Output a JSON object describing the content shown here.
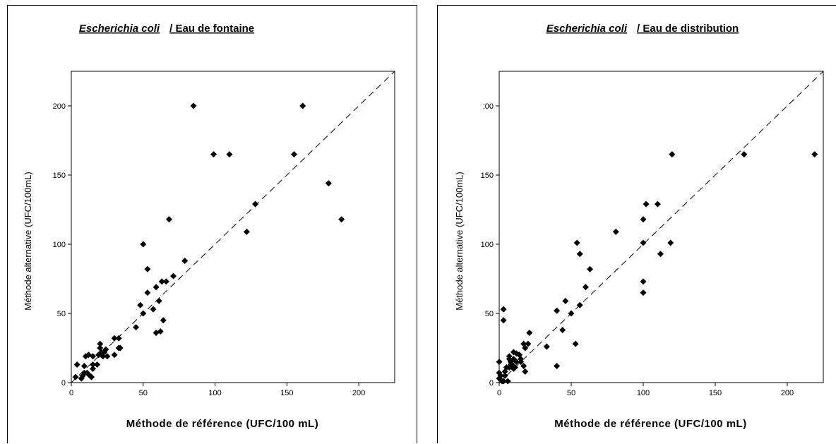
{
  "chart_data": [
    {
      "type": "scatter",
      "title_species": "Escherichia coli",
      "title_rest": "/ Eau de fontaine",
      "xlabel": "Méthode de référence (UFC/100 mL)",
      "ylabel": "Méthode alternative (UFC/100mL)",
      "xlim": [
        0,
        225
      ],
      "ylim": [
        0,
        225
      ],
      "xticks": [
        "0",
        "50",
        "100",
        "150",
        "200"
      ],
      "yticks": [
        "0",
        "50",
        "100",
        "150",
        "200"
      ],
      "reference_line": "y = x (dashed)",
      "grid": false,
      "points": [
        [
          3,
          4
        ],
        [
          4,
          13
        ],
        [
          7,
          3
        ],
        [
          8,
          5
        ],
        [
          9,
          7
        ],
        [
          9,
          12
        ],
        [
          10,
          19
        ],
        [
          11,
          7
        ],
        [
          12,
          20
        ],
        [
          13,
          5
        ],
        [
          14,
          4
        ],
        [
          15,
          19
        ],
        [
          15,
          10
        ],
        [
          15,
          13
        ],
        [
          18,
          13
        ],
        [
          19,
          20
        ],
        [
          19,
          20
        ],
        [
          20,
          25
        ],
        [
          20,
          28
        ],
        [
          21,
          22
        ],
        [
          22,
          19
        ],
        [
          23,
          22
        ],
        [
          24,
          24
        ],
        [
          25,
          19
        ],
        [
          30,
          20
        ],
        [
          30,
          32
        ],
        [
          33,
          32
        ],
        [
          33,
          25
        ],
        [
          34,
          25
        ],
        [
          45,
          40
        ],
        [
          48,
          56
        ],
        [
          50,
          50
        ],
        [
          50,
          100
        ],
        [
          53,
          82
        ],
        [
          53,
          65
        ],
        [
          57,
          53
        ],
        [
          59,
          36
        ],
        [
          59,
          69
        ],
        [
          61,
          59
        ],
        [
          62,
          37
        ],
        [
          63,
          73
        ],
        [
          64,
          45
        ],
        [
          66,
          73
        ],
        [
          68,
          118
        ],
        [
          71,
          77
        ],
        [
          79,
          88
        ],
        [
          85,
          200
        ],
        [
          99,
          165
        ],
        [
          110,
          165
        ],
        [
          122,
          109
        ],
        [
          128,
          129
        ],
        [
          155,
          165
        ],
        [
          161,
          200
        ],
        [
          179,
          144
        ],
        [
          188,
          118
        ]
      ]
    },
    {
      "type": "scatter",
      "title_species": "Escherichia coli",
      "title_rest": "/ Eau de distribution",
      "xlabel": "Méthode de référence (UFC/100 mL)",
      "ylabel": "Méthode alternative (UFC/100mL)",
      "xlim": [
        0,
        225
      ],
      "ylim": [
        0,
        225
      ],
      "xticks": [
        "0",
        "50",
        "100",
        "150",
        "200"
      ],
      "yticks": [
        "0",
        "50",
        "100",
        "150",
        "200"
      ],
      "ytick_top_override": ":00",
      "reference_line": "y = x (dashed)",
      "grid": false,
      "points": [
        [
          0,
          15
        ],
        [
          0,
          7
        ],
        [
          0,
          3
        ],
        [
          1,
          5
        ],
        [
          2,
          1
        ],
        [
          3,
          1
        ],
        [
          3,
          53
        ],
        [
          3,
          45
        ],
        [
          4,
          5
        ],
        [
          4,
          8
        ],
        [
          5,
          11
        ],
        [
          6,
          1
        ],
        [
          7,
          17
        ],
        [
          7,
          11
        ],
        [
          7,
          19
        ],
        [
          8,
          13
        ],
        [
          8,
          15
        ],
        [
          9,
          13
        ],
        [
          10,
          10
        ],
        [
          10,
          17
        ],
        [
          10,
          22
        ],
        [
          11,
          11
        ],
        [
          12,
          15
        ],
        [
          12,
          21
        ],
        [
          14,
          20
        ],
        [
          15,
          15
        ],
        [
          15,
          17
        ],
        [
          17,
          12
        ],
        [
          17,
          28
        ],
        [
          18,
          8
        ],
        [
          18,
          25
        ],
        [
          20,
          28
        ],
        [
          21,
          36
        ],
        [
          33,
          26
        ],
        [
          40,
          12
        ],
        [
          40,
          52
        ],
        [
          44,
          38
        ],
        [
          46,
          59
        ],
        [
          50,
          50
        ],
        [
          53,
          28
        ],
        [
          54,
          101
        ],
        [
          56,
          93
        ],
        [
          56,
          56
        ],
        [
          60,
          69
        ],
        [
          63,
          82
        ],
        [
          81,
          109
        ],
        [
          100,
          118
        ],
        [
          100,
          73
        ],
        [
          100,
          65
        ],
        [
          100,
          101
        ],
        [
          102,
          129
        ],
        [
          110,
          129
        ],
        [
          112,
          93
        ],
        [
          119,
          101
        ],
        [
          120,
          165
        ],
        [
          170,
          165
        ],
        [
          219,
          165
        ]
      ]
    }
  ]
}
